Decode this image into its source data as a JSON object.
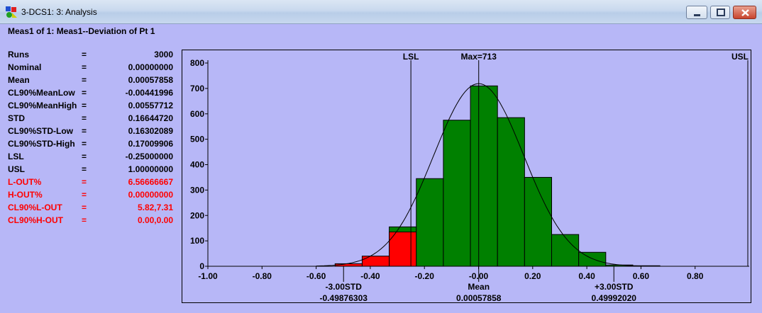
{
  "window": {
    "title": "3-DCS1: 3: Analysis",
    "icon": "dcs-app-icon"
  },
  "heading": "Meas1 of 1: Meas1--Deviation of Pt 1",
  "stats": [
    {
      "label": "Runs",
      "eq": "=",
      "value": "3000",
      "red": false
    },
    {
      "label": "Nominal",
      "eq": "=",
      "value": "0.00000000",
      "red": false
    },
    {
      "label": "Mean",
      "eq": "=",
      "value": "0.00057858",
      "red": false
    },
    {
      "label": "CL90%MeanLow",
      "eq": "=",
      "value": "-0.00441996",
      "red": false
    },
    {
      "label": "CL90%MeanHigh",
      "eq": "=",
      "value": "0.00557712",
      "red": false
    },
    {
      "label": "STD",
      "eq": "=",
      "value": "0.16644720",
      "red": false
    },
    {
      "label": "CL90%STD-Low",
      "eq": "=",
      "value": "0.16302089",
      "red": false
    },
    {
      "label": "CL90%STD-High",
      "eq": "=",
      "value": "0.17009906",
      "red": false
    },
    {
      "label": "LSL",
      "eq": "=",
      "value": "-0.25000000",
      "red": false
    },
    {
      "label": "USL",
      "eq": "=",
      "value": "1.00000000",
      "red": false
    },
    {
      "label": "L-OUT%",
      "eq": "=",
      "value": "6.56666667",
      "red": true
    },
    {
      "label": "H-OUT%",
      "eq": "=",
      "value": "0.00000000",
      "red": true
    },
    {
      "label": "CL90%L-OUT",
      "eq": "=",
      "value": "5.82,7.31",
      "red": true
    },
    {
      "label": "CL90%H-OUT",
      "eq": "=",
      "value": "0.00,0.00",
      "red": true
    }
  ],
  "colors": {
    "background": "#b7b7f7",
    "in_spec": "#008000",
    "out_spec": "#ff0000",
    "text_red": "#ff0000"
  },
  "chart_data": {
    "type": "bar",
    "bin_width": 0.1,
    "xlim": [
      -1.0,
      1.0
    ],
    "ylim": [
      0,
      800
    ],
    "x_ticks": [
      -1.0,
      -0.8,
      -0.6,
      -0.4,
      -0.2,
      0.0,
      0.2,
      0.4,
      0.6,
      0.8
    ],
    "x_tick_labels": [
      "-1.00",
      "-0.80",
      "-0.60",
      "-0.40",
      "-0.20",
      "-0.00",
      "0.20",
      "0.40",
      "0.60",
      "0.80"
    ],
    "y_ticks": [
      0,
      100,
      200,
      300,
      400,
      500,
      600,
      700,
      800
    ],
    "y_tick_labels": [
      "0",
      "100",
      "200",
      "300",
      "400",
      "500",
      "600",
      "700",
      "800"
    ],
    "bins": [
      {
        "start": -0.53,
        "total": 10,
        "out": 10
      },
      {
        "start": -0.43,
        "total": 40,
        "out": 40
      },
      {
        "start": -0.33,
        "total": 155,
        "out": 135
      },
      {
        "start": -0.23,
        "total": 345,
        "out": 0
      },
      {
        "start": -0.13,
        "total": 575,
        "out": 0
      },
      {
        "start": -0.03,
        "total": 710,
        "out": 0
      },
      {
        "start": 0.07,
        "total": 585,
        "out": 0
      },
      {
        "start": 0.17,
        "total": 350,
        "out": 0
      },
      {
        "start": 0.27,
        "total": 125,
        "out": 0
      },
      {
        "start": 0.37,
        "total": 55,
        "out": 0
      },
      {
        "start": 0.47,
        "total": 5,
        "out": 0
      },
      {
        "start": 0.57,
        "total": 2,
        "out": 0
      }
    ],
    "normal_curve": {
      "mean": 0.00057858,
      "std": 0.1664472,
      "n": 3000
    },
    "lines": [
      {
        "label": "LSL",
        "x": -0.25
      },
      {
        "label": "Max=713",
        "x": 0.00057858
      },
      {
        "label": "USL",
        "x": 1.0
      }
    ],
    "bottom_labels": [
      {
        "label": "-3.00STD",
        "value": "-0.49876303",
        "x": -0.49876303
      },
      {
        "label": "Mean",
        "value": "0.00057858",
        "x": 0.00057858
      },
      {
        "label": "+3.00STD",
        "value": "0.49992020",
        "x": 0.4999202
      }
    ]
  }
}
